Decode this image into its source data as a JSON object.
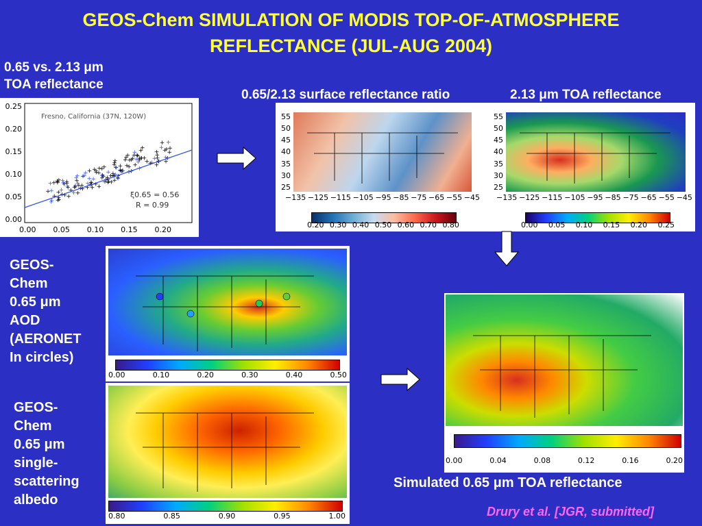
{
  "title": {
    "line1": "GEOS-Chem SIMULATION OF MODIS TOP-OF-ATMOSPHERE",
    "line2": "REFLECTANCE (JUL-AUG 2004)"
  },
  "scatter_panel": {
    "label_line1": "0.65 vs. 2.13 μm",
    "label_line2": "TOA reflectance",
    "plot_title": "Fresno, California   (37N, 120W)",
    "y_ticks": [
      "0.25",
      "0.20",
      "0.15",
      "0.10",
      "0.05",
      "0.00"
    ],
    "x_ticks": [
      "0.00",
      "0.05",
      "0.10",
      "0.15",
      "0.20"
    ],
    "slope_text": "ξ0.65 = 0.56",
    "r_text": "R = 0.99"
  },
  "ratio_panel": {
    "label": "0.65/2.13 surface reflectance ratio",
    "y_ticks": [
      "55",
      "50",
      "45",
      "40",
      "35",
      "30",
      "25"
    ],
    "x_ticks": [
      "−135",
      "−125",
      "−115",
      "−105",
      "−95",
      "−85",
      "−75",
      "−65",
      "−55",
      "−45"
    ],
    "cbar_ticks": [
      "0.20",
      "0.30",
      "0.40",
      "0.50",
      "0.60",
      "0.70",
      "0.80"
    ]
  },
  "toa213_panel": {
    "label": "2.13 μm TOA reflectance",
    "y_ticks": [
      "55",
      "50",
      "45",
      "40",
      "35",
      "30",
      "25"
    ],
    "x_ticks": [
      "−135",
      "−125",
      "−115",
      "−105",
      "−95",
      "−85",
      "−75",
      "−65",
      "−55",
      "−45"
    ],
    "cbar_ticks": [
      "0.00",
      "0.05",
      "0.10",
      "0.15",
      "0.20",
      "0.25"
    ]
  },
  "aod_panel": {
    "label_lines": [
      "GEOS-",
      "Chem",
      "0.65 μm",
      "AOD",
      "(AERONET",
      "In circles)"
    ],
    "cbar_ticks": [
      "0.00",
      "0.10",
      "0.20",
      "0.30",
      "0.40",
      "0.50"
    ]
  },
  "ssa_panel": {
    "label_lines": [
      "GEOS-",
      "Chem",
      "0.65 μm",
      "single-",
      "scattering",
      "albedo"
    ],
    "cbar_ticks": [
      "0.80",
      "0.85",
      "0.90",
      "0.95",
      "1.00"
    ]
  },
  "sim_panel": {
    "label": "Simulated 0.65 μm TOA reflectance",
    "cbar_ticks": [
      "0.00",
      "0.04",
      "0.08",
      "0.12",
      "0.16",
      "0.20"
    ]
  },
  "citation": "Drury et al. [JGR, submitted]",
  "colors": {
    "background": "#2b2fc4",
    "title": "#ffff33",
    "citation": "#ff66ff"
  }
}
